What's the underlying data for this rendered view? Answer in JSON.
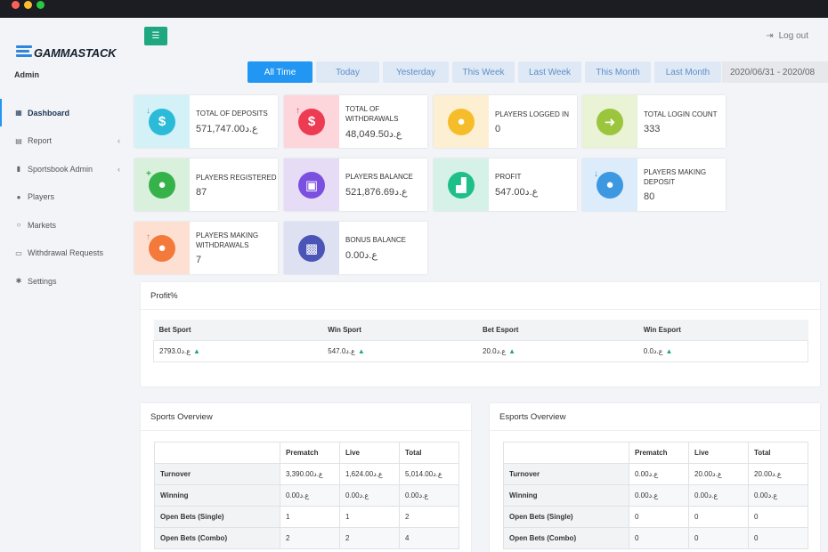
{
  "brand": {
    "name": "GAMMASTACK",
    "role": "Admin"
  },
  "sidebar": {
    "items": [
      {
        "label": "Dashboard",
        "icon": "dashboard-icon",
        "glyph": "▦",
        "active": true,
        "chevron": false
      },
      {
        "label": "Report",
        "icon": "report-icon",
        "glyph": "▤",
        "active": false,
        "chevron": true
      },
      {
        "label": "Sportsbook Admin",
        "icon": "book-icon",
        "glyph": "▮",
        "active": false,
        "chevron": true
      },
      {
        "label": "Players",
        "icon": "user-icon",
        "glyph": "●",
        "active": false,
        "chevron": false
      },
      {
        "label": "Markets",
        "icon": "circle-icon",
        "glyph": "○",
        "active": false,
        "chevron": false
      },
      {
        "label": "Withdrawal Requests",
        "icon": "money-icon",
        "glyph": "▭",
        "active": false,
        "chevron": false
      },
      {
        "label": "Settings",
        "icon": "gears-icon",
        "glyph": "✱",
        "active": false,
        "chevron": false
      }
    ]
  },
  "header": {
    "menu_icon": "☰",
    "logout_label": "Log out",
    "logout_icon": "⇥"
  },
  "filters": {
    "tabs": [
      {
        "label": "All Time",
        "active": true
      },
      {
        "label": "Today",
        "active": false
      },
      {
        "label": "Yesterday",
        "active": false
      },
      {
        "label": "This Week",
        "active": false
      },
      {
        "label": "Last Week",
        "active": false
      },
      {
        "label": "This Month",
        "active": false
      },
      {
        "label": "Last Month",
        "active": false
      }
    ],
    "date_range": "2020/06/31 - 2020/08"
  },
  "cards": [
    {
      "title": "TOTAL OF DEPOSITS",
      "value": "571,747.00ع.د",
      "icon": "dollar-deposit-icon",
      "glyph": "$",
      "badge": "↓",
      "bg": "#d4f1f8",
      "circle": "#2bbbd8"
    },
    {
      "title": "TOTAL OF WITHDRAWALS",
      "value": "48,049.50ع.د",
      "icon": "dollar-withdrawal-icon",
      "glyph": "$",
      "badge": "↑",
      "bg": "#fcd6da",
      "circle": "#ec3b53"
    },
    {
      "title": "PLAYERS LOGGED IN",
      "value": "0",
      "icon": "user-logged-in-icon",
      "glyph": "●",
      "badge": "",
      "bg": "#fdf0d2",
      "circle": "#f6bd2b"
    },
    {
      "title": "TOTAL LOGIN COUNT",
      "value": "333",
      "icon": "arrow-right-icon",
      "glyph": "➜",
      "badge": "",
      "bg": "#eaf3d6",
      "circle": "#9bc53d"
    },
    {
      "title": "PLAYERS REGISTERED",
      "value": "87",
      "icon": "user-add-icon",
      "glyph": "●",
      "badge": "+",
      "bg": "#d8f0dc",
      "circle": "#35b34a"
    },
    {
      "title": "PLAYERS BALANCE",
      "value": "521,876.69ع.د",
      "icon": "money-bill-icon",
      "glyph": "▣",
      "badge": "",
      "bg": "#e6dcf6",
      "circle": "#7b4fe0"
    },
    {
      "title": "PROFIT",
      "value": "547.00ع.د",
      "icon": "bar-chart-icon",
      "glyph": "▟",
      "badge": "",
      "bg": "#d6f2e8",
      "circle": "#1fbf89"
    },
    {
      "title": "PLAYERS MAKING DEPOSIT",
      "value": "80",
      "icon": "user-deposit-icon",
      "glyph": "●",
      "badge": "↓",
      "bg": "#dcecfa",
      "circle": "#3d98e2"
    },
    {
      "title": "PLAYERS MAKING WITHDRAWALS",
      "value": "7",
      "icon": "user-withdrawal-icon",
      "glyph": "●",
      "badge": "↑",
      "bg": "#fde0d2",
      "circle": "#f47a3c"
    },
    {
      "title": "BONUS BALANCE",
      "value": "0.00ع.د",
      "icon": "gift-icon",
      "glyph": "▩",
      "badge": "",
      "bg": "#dde1f1",
      "circle": "#4b55b8"
    }
  ],
  "profit": {
    "title": "Profit%",
    "headers": [
      "Bet Sport",
      "Win Sport",
      "Bet Esport",
      "Win Esport"
    ],
    "values": [
      "2793.0ع.د",
      "547.0ع.د",
      "20.0ع.د",
      "0.0ع.د"
    ],
    "trend_icon": "▲"
  },
  "sports_overview": {
    "title": "Sports Overview",
    "headers": [
      "",
      "Prematch",
      "Live",
      "Total"
    ],
    "rows": [
      [
        "Turnover",
        "3,390.00ع.د",
        "1,624.00ع.د",
        "5,014.00ع.د"
      ],
      [
        "Winning",
        "0.00ع.د",
        "0.00ع.د",
        "0.00ع.د"
      ],
      [
        "Open Bets (Single)",
        "1",
        "1",
        "2"
      ],
      [
        "Open Bets (Combo)",
        "2",
        "2",
        "4"
      ]
    ]
  },
  "esports_overview": {
    "title": "Esports Overview",
    "headers": [
      "",
      "Prematch",
      "Live",
      "Total"
    ],
    "rows": [
      [
        "Turnover",
        "0.00ع.د",
        "20.00ع.د",
        "20.00ع.د"
      ],
      [
        "Winning",
        "0.00ع.د",
        "0.00ع.د",
        "0.00ع.د"
      ],
      [
        "Open Bets (Single)",
        "0",
        "0",
        "0"
      ],
      [
        "Open Bets (Combo)",
        "0",
        "0",
        "0"
      ]
    ]
  }
}
